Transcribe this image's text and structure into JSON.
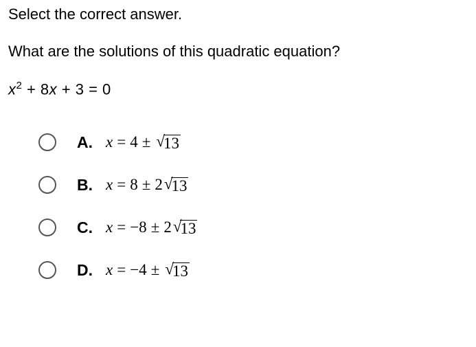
{
  "instruction": "Select the correct answer.",
  "question": "What are the solutions of this quadratic equation?",
  "equation": {
    "var": "x",
    "exp": "2",
    "rest": " + 8",
    "var2": "x",
    "rest2": " + 3 = 0"
  },
  "options": {
    "a": {
      "letter": "A.",
      "lhs": "x",
      "eq": "=",
      "val": "4",
      "pm": "±",
      "coef": "",
      "radicand": "13"
    },
    "b": {
      "letter": "B.",
      "lhs": "x",
      "eq": "=",
      "val": "8",
      "pm": "±",
      "coef": "2",
      "radicand": "13"
    },
    "c": {
      "letter": "C.",
      "lhs": "x",
      "eq": "=",
      "val": "−8",
      "pm": "±",
      "coef": "2",
      "radicand": "13"
    },
    "d": {
      "letter": "D.",
      "lhs": "x",
      "eq": "=",
      "val": "−4",
      "pm": "±",
      "coef": "",
      "radicand": "13"
    }
  },
  "colors": {
    "text": "#000000",
    "background": "#ffffff",
    "radio_border": "#555555"
  },
  "typography": {
    "body_fontsize": 22,
    "option_fontsize": 23,
    "sup_fontsize": 15,
    "font_family_body": "Arial",
    "font_family_math": "Times New Roman"
  }
}
